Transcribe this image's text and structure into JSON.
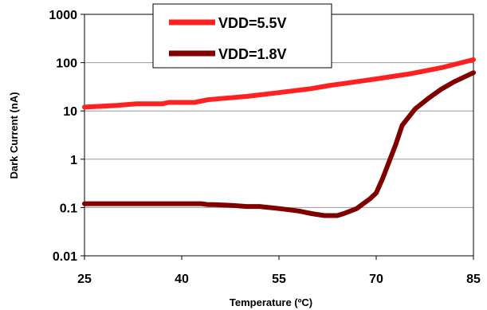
{
  "chart_data": {
    "type": "line",
    "title": "",
    "xlabel": "Temperature (ºC)",
    "ylabel": "Dark Current (nA)",
    "xlim": [
      25,
      85
    ],
    "ylim": [
      0.01,
      1000
    ],
    "yscale": "log",
    "x_ticks": [
      "25",
      "40",
      "55",
      "70",
      "85"
    ],
    "y_ticks": [
      "1000",
      "100",
      "10",
      "1",
      "0.1",
      "0.01"
    ],
    "grid": "horizontal",
    "legend_position": "top-center",
    "series": [
      {
        "name": "VDD=5.5V",
        "color": "#ff2020",
        "x": [
          25,
          30,
          33,
          37,
          38,
          40,
          42,
          44,
          46,
          50,
          55,
          60,
          63,
          65,
          70,
          75,
          80,
          85
        ],
        "y": [
          12,
          13,
          14,
          14,
          15,
          15,
          15,
          17,
          18,
          20,
          24,
          29,
          34,
          37,
          46,
          58,
          78,
          115
        ]
      },
      {
        "name": "VDD=1.8V",
        "color": "#800000",
        "x": [
          25,
          30,
          35,
          40,
          43,
          44,
          45,
          48,
          50,
          52,
          55,
          58,
          60,
          62,
          63,
          64,
          65,
          67,
          68,
          69,
          70,
          71,
          72,
          73,
          74,
          76,
          78,
          80,
          82,
          85
        ],
        "y": [
          0.12,
          0.12,
          0.12,
          0.12,
          0.12,
          0.115,
          0.115,
          0.11,
          0.105,
          0.105,
          0.095,
          0.085,
          0.075,
          0.068,
          0.068,
          0.068,
          0.075,
          0.095,
          0.12,
          0.15,
          0.2,
          0.4,
          0.9,
          2,
          5,
          11,
          18,
          28,
          40,
          62
        ]
      }
    ]
  }
}
